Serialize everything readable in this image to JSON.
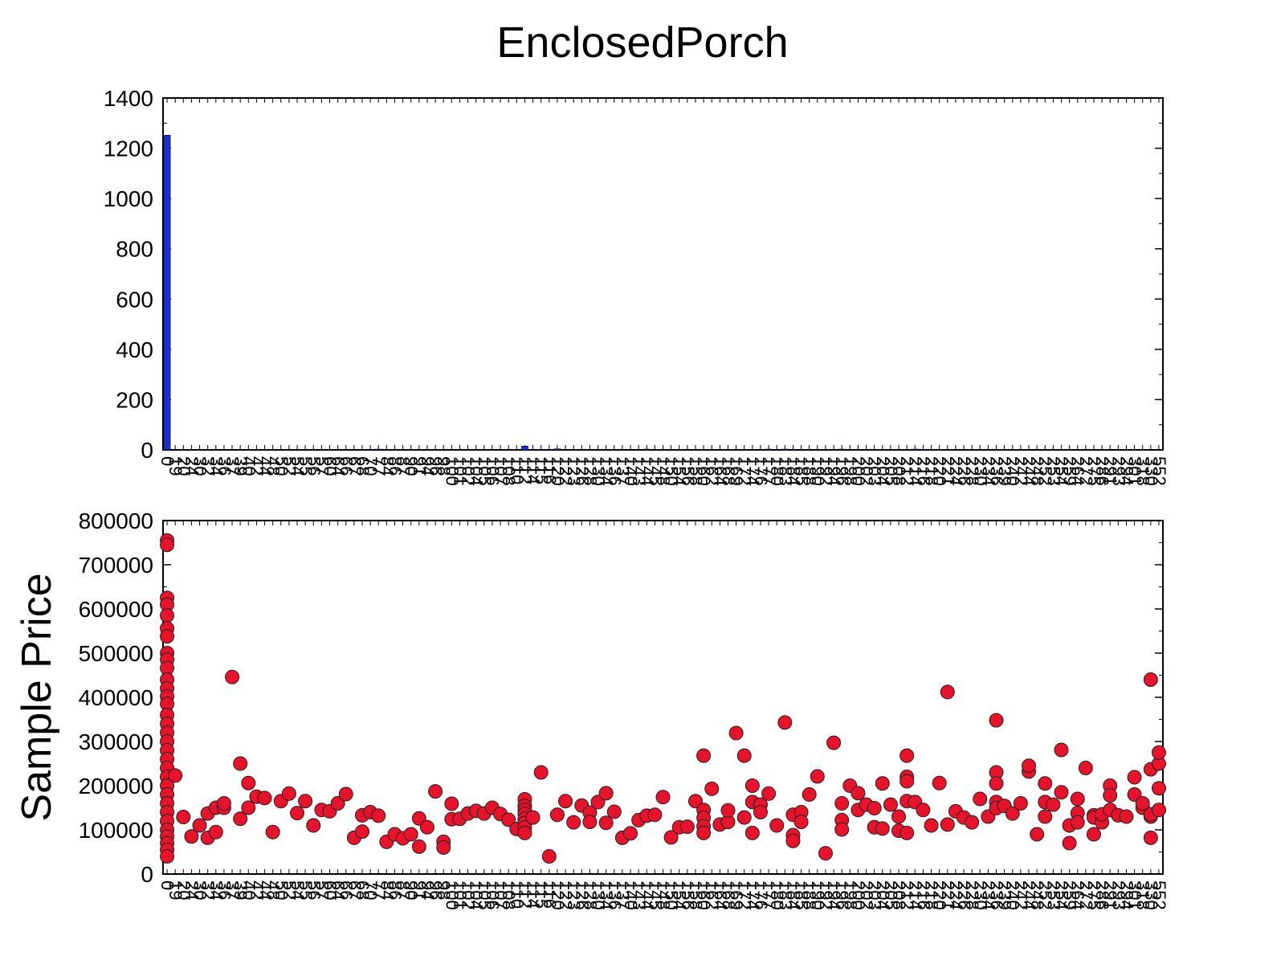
{
  "chart_data": [
    {
      "type": "bar",
      "title": "EnclosedPorch",
      "xlabel": "",
      "ylabel": "",
      "ylim": [
        0,
        1400
      ],
      "yticks": [
        0,
        200,
        400,
        600,
        800,
        1000,
        1200,
        1400
      ],
      "categories": [
        "0",
        "19",
        "20",
        "24",
        "30",
        "32",
        "34",
        "36",
        "37",
        "39",
        "40",
        "42",
        "44",
        "48",
        "50",
        "52",
        "54",
        "55",
        "56",
        "57",
        "60",
        "64",
        "66",
        "67",
        "68",
        "70",
        "77",
        "84",
        "86",
        "87",
        "90",
        "91",
        "94",
        "96",
        "98",
        "100",
        "101",
        "102",
        "104",
        "105",
        "106",
        "107",
        "108",
        "110",
        "112",
        "114",
        "115",
        "116",
        "120",
        "122",
        "123",
        "126",
        "128",
        "130",
        "134",
        "136",
        "137",
        "140",
        "143",
        "144",
        "145",
        "148",
        "150",
        "154",
        "156",
        "158",
        "160",
        "162",
        "164",
        "168",
        "169",
        "172",
        "174",
        "176",
        "177",
        "180",
        "183",
        "184",
        "185",
        "188",
        "190",
        "192",
        "194",
        "196",
        "198",
        "200",
        "202",
        "203",
        "204",
        "205",
        "208",
        "212",
        "214",
        "216",
        "218",
        "220",
        "221",
        "224",
        "226",
        "228",
        "230",
        "234",
        "236",
        "239",
        "240",
        "242",
        "244",
        "248",
        "252",
        "253",
        "254",
        "259",
        "264",
        "272",
        "275",
        "286",
        "291",
        "293",
        "294",
        "301",
        "318",
        "330",
        "552"
      ],
      "values": [
        1252,
        1,
        1,
        1,
        1,
        2,
        1,
        1,
        1,
        1,
        1,
        2,
        2,
        1,
        1,
        1,
        1,
        1,
        2,
        1,
        1,
        1,
        1,
        1,
        1,
        1,
        3,
        1,
        1,
        1,
        2,
        1,
        1,
        2,
        1,
        1,
        1,
        1,
        1,
        1,
        1,
        1,
        1,
        1,
        15,
        2,
        1,
        1,
        4,
        1,
        1,
        1,
        1,
        1,
        1,
        2,
        1,
        1,
        1,
        3,
        1,
        1,
        1,
        2,
        1,
        1,
        2,
        1,
        1,
        2,
        1,
        2,
        1,
        1,
        3,
        1,
        3,
        2,
        1,
        1,
        2,
        1,
        1,
        3,
        1,
        1,
        1,
        2,
        1,
        1,
        2,
        1,
        3,
        1,
        1,
        2,
        2,
        1,
        1,
        2,
        1,
        1,
        2,
        2,
        1,
        1,
        1,
        1,
        1,
        1,
        1,
        1,
        1,
        1,
        1,
        1,
        1,
        1,
        1,
        1,
        1,
        1,
        1
      ],
      "color": "#1a2fd6"
    },
    {
      "type": "scatter",
      "title": "",
      "xlabel": "",
      "ylabel": "Sample Price",
      "ylim": [
        0,
        800000
      ],
      "yticks": [
        0,
        100000,
        200000,
        300000,
        400000,
        500000,
        600000,
        700000,
        800000
      ],
      "color": "#e8132a",
      "points": [
        {
          "x": "0",
          "y": 755000
        },
        {
          "x": "0",
          "y": 745000
        },
        {
          "x": "0",
          "y": 625000
        },
        {
          "x": "0",
          "y": 610000
        },
        {
          "x": "0",
          "y": 585000
        },
        {
          "x": "0",
          "y": 556000
        },
        {
          "x": "0",
          "y": 538000
        },
        {
          "x": "0",
          "y": 500000
        },
        {
          "x": "0",
          "y": 485000
        },
        {
          "x": "0",
          "y": 466000
        },
        {
          "x": "0",
          "y": 440000
        },
        {
          "x": "0",
          "y": 420000
        },
        {
          "x": "0",
          "y": 402000
        },
        {
          "x": "0",
          "y": 385000
        },
        {
          "x": "0",
          "y": 360000
        },
        {
          "x": "0",
          "y": 340000
        },
        {
          "x": "0",
          "y": 320000
        },
        {
          "x": "0",
          "y": 300000
        },
        {
          "x": "0",
          "y": 280000
        },
        {
          "x": "0",
          "y": 260000
        },
        {
          "x": "0",
          "y": 240000
        },
        {
          "x": "0",
          "y": 220000
        },
        {
          "x": "0",
          "y": 200000
        },
        {
          "x": "0",
          "y": 180000
        },
        {
          "x": "0",
          "y": 160000
        },
        {
          "x": "0",
          "y": 140000
        },
        {
          "x": "0",
          "y": 120000
        },
        {
          "x": "0",
          "y": 100000
        },
        {
          "x": "0",
          "y": 85000
        },
        {
          "x": "0",
          "y": 70000
        },
        {
          "x": "0",
          "y": 55000
        },
        {
          "x": "0",
          "y": 40000
        },
        {
          "x": "19",
          "y": 223000
        },
        {
          "x": "20",
          "y": 129000
        },
        {
          "x": "24",
          "y": 85000
        },
        {
          "x": "30",
          "y": 110000
        },
        {
          "x": "32",
          "y": 82000
        },
        {
          "x": "32",
          "y": 137000
        },
        {
          "x": "34",
          "y": 150000
        },
        {
          "x": "34",
          "y": 95000
        },
        {
          "x": "36",
          "y": 150000
        },
        {
          "x": "36",
          "y": 160000
        },
        {
          "x": "37",
          "y": 446000
        },
        {
          "x": "39",
          "y": 125000
        },
        {
          "x": "39",
          "y": 250000
        },
        {
          "x": "40",
          "y": 206000
        },
        {
          "x": "40",
          "y": 150000
        },
        {
          "x": "42",
          "y": 175000
        },
        {
          "x": "44",
          "y": 172000
        },
        {
          "x": "48",
          "y": 95000
        },
        {
          "x": "50",
          "y": 165000
        },
        {
          "x": "52",
          "y": 182000
        },
        {
          "x": "54",
          "y": 138000
        },
        {
          "x": "55",
          "y": 165000
        },
        {
          "x": "56",
          "y": 110000
        },
        {
          "x": "57",
          "y": 145000
        },
        {
          "x": "60",
          "y": 142000
        },
        {
          "x": "64",
          "y": 160000
        },
        {
          "x": "66",
          "y": 181000
        },
        {
          "x": "67",
          "y": 82000
        },
        {
          "x": "68",
          "y": 96000
        },
        {
          "x": "68",
          "y": 133000
        },
        {
          "x": "70",
          "y": 140000
        },
        {
          "x": "77",
          "y": 132000
        },
        {
          "x": "84",
          "y": 73000
        },
        {
          "x": "86",
          "y": 90000
        },
        {
          "x": "87",
          "y": 81000
        },
        {
          "x": "90",
          "y": 90000
        },
        {
          "x": "91",
          "y": 62000
        },
        {
          "x": "91",
          "y": 126000
        },
        {
          "x": "94",
          "y": 106000
        },
        {
          "x": "96",
          "y": 187000
        },
        {
          "x": "98",
          "y": 73000
        },
        {
          "x": "98",
          "y": 60000
        },
        {
          "x": "100",
          "y": 159000
        },
        {
          "x": "100",
          "y": 124000
        },
        {
          "x": "101",
          "y": 125000
        },
        {
          "x": "102",
          "y": 137000
        },
        {
          "x": "104",
          "y": 143000
        },
        {
          "x": "105",
          "y": 137000
        },
        {
          "x": "106",
          "y": 150000
        },
        {
          "x": "107",
          "y": 136000
        },
        {
          "x": "108",
          "y": 123000
        },
        {
          "x": "110",
          "y": 102000
        },
        {
          "x": "112",
          "y": 169000
        },
        {
          "x": "112",
          "y": 154000
        },
        {
          "x": "112",
          "y": 145000
        },
        {
          "x": "112",
          "y": 136000
        },
        {
          "x": "112",
          "y": 125000
        },
        {
          "x": "112",
          "y": 115000
        },
        {
          "x": "112",
          "y": 105000
        },
        {
          "x": "112",
          "y": 93000
        },
        {
          "x": "114",
          "y": 128000
        },
        {
          "x": "115",
          "y": 230000
        },
        {
          "x": "116",
          "y": 40000
        },
        {
          "x": "120",
          "y": 134000
        },
        {
          "x": "122",
          "y": 165000
        },
        {
          "x": "123",
          "y": 117000
        },
        {
          "x": "126",
          "y": 155000
        },
        {
          "x": "128",
          "y": 139000
        },
        {
          "x": "128",
          "y": 118000
        },
        {
          "x": "130",
          "y": 163000
        },
        {
          "x": "134",
          "y": 183000
        },
        {
          "x": "134",
          "y": 116000
        },
        {
          "x": "136",
          "y": 141000
        },
        {
          "x": "137",
          "y": 82000
        },
        {
          "x": "140",
          "y": 92000
        },
        {
          "x": "143",
          "y": 122000
        },
        {
          "x": "144",
          "y": 132000
        },
        {
          "x": "145",
          "y": 134000
        },
        {
          "x": "148",
          "y": 174000
        },
        {
          "x": "150",
          "y": 83000
        },
        {
          "x": "154",
          "y": 106000
        },
        {
          "x": "156",
          "y": 107000
        },
        {
          "x": "158",
          "y": 165000
        },
        {
          "x": "160",
          "y": 268000
        },
        {
          "x": "160",
          "y": 145000
        },
        {
          "x": "160",
          "y": 127000
        },
        {
          "x": "160",
          "y": 108000
        },
        {
          "x": "160",
          "y": 93000
        },
        {
          "x": "162",
          "y": 193000
        },
        {
          "x": "164",
          "y": 112000
        },
        {
          "x": "168",
          "y": 118000
        },
        {
          "x": "168",
          "y": 144000
        },
        {
          "x": "169",
          "y": 319000
        },
        {
          "x": "172",
          "y": 268000
        },
        {
          "x": "172",
          "y": 128000
        },
        {
          "x": "174",
          "y": 200000
        },
        {
          "x": "174",
          "y": 163000
        },
        {
          "x": "174",
          "y": 93000
        },
        {
          "x": "176",
          "y": 157000
        },
        {
          "x": "176",
          "y": 140000
        },
        {
          "x": "177",
          "y": 182000
        },
        {
          "x": "180",
          "y": 110000
        },
        {
          "x": "183",
          "y": 343000
        },
        {
          "x": "184",
          "y": 134000
        },
        {
          "x": "184",
          "y": 88000
        },
        {
          "x": "184",
          "y": 75000
        },
        {
          "x": "185",
          "y": 140000
        },
        {
          "x": "185",
          "y": 118000
        },
        {
          "x": "188",
          "y": 180000
        },
        {
          "x": "190",
          "y": 221000
        },
        {
          "x": "192",
          "y": 47000
        },
        {
          "x": "194",
          "y": 297000
        },
        {
          "x": "196",
          "y": 160000
        },
        {
          "x": "196",
          "y": 122000
        },
        {
          "x": "196",
          "y": 101000
        },
        {
          "x": "198",
          "y": 200000
        },
        {
          "x": "200",
          "y": 183000
        },
        {
          "x": "200",
          "y": 145000
        },
        {
          "x": "202",
          "y": 157000
        },
        {
          "x": "203",
          "y": 149000
        },
        {
          "x": "203",
          "y": 106000
        },
        {
          "x": "204",
          "y": 205000
        },
        {
          "x": "204",
          "y": 103000
        },
        {
          "x": "205",
          "y": 157000
        },
        {
          "x": "208",
          "y": 130000
        },
        {
          "x": "208",
          "y": 98000
        },
        {
          "x": "212",
          "y": 268000
        },
        {
          "x": "212",
          "y": 220000
        },
        {
          "x": "212",
          "y": 210000
        },
        {
          "x": "212",
          "y": 165000
        },
        {
          "x": "212",
          "y": 93000
        },
        {
          "x": "214",
          "y": 163000
        },
        {
          "x": "216",
          "y": 145000
        },
        {
          "x": "218",
          "y": 110000
        },
        {
          "x": "220",
          "y": 206000
        },
        {
          "x": "221",
          "y": 412000
        },
        {
          "x": "221",
          "y": 112000
        },
        {
          "x": "224",
          "y": 142000
        },
        {
          "x": "226",
          "y": 128000
        },
        {
          "x": "228",
          "y": 117000
        },
        {
          "x": "230",
          "y": 170000
        },
        {
          "x": "234",
          "y": 130000
        },
        {
          "x": "236",
          "y": 348000
        },
        {
          "x": "236",
          "y": 230000
        },
        {
          "x": "236",
          "y": 205000
        },
        {
          "x": "236",
          "y": 163000
        },
        {
          "x": "236",
          "y": 149000
        },
        {
          "x": "239",
          "y": 154000
        },
        {
          "x": "240",
          "y": 137000
        },
        {
          "x": "242",
          "y": 160000
        },
        {
          "x": "244",
          "y": 232000
        },
        {
          "x": "244",
          "y": 245000
        },
        {
          "x": "248",
          "y": 90000
        },
        {
          "x": "252",
          "y": 205000
        },
        {
          "x": "252",
          "y": 163000
        },
        {
          "x": "252",
          "y": 130000
        },
        {
          "x": "253",
          "y": 157000
        },
        {
          "x": "254",
          "y": 185000
        },
        {
          "x": "254",
          "y": 281000
        },
        {
          "x": "259",
          "y": 110000
        },
        {
          "x": "259",
          "y": 70000
        },
        {
          "x": "264",
          "y": 138000
        },
        {
          "x": "264",
          "y": 170000
        },
        {
          "x": "264",
          "y": 117000
        },
        {
          "x": "272",
          "y": 240000
        },
        {
          "x": "275",
          "y": 133000
        },
        {
          "x": "275",
          "y": 90000
        },
        {
          "x": "275",
          "y": 128000
        },
        {
          "x": "286",
          "y": 117000
        },
        {
          "x": "286",
          "y": 135000
        },
        {
          "x": "291",
          "y": 200000
        },
        {
          "x": "291",
          "y": 178000
        },
        {
          "x": "291",
          "y": 145000
        },
        {
          "x": "293",
          "y": 133000
        },
        {
          "x": "294",
          "y": 130000
        },
        {
          "x": "301",
          "y": 180000
        },
        {
          "x": "301",
          "y": 219000
        },
        {
          "x": "318",
          "y": 150000
        },
        {
          "x": "318",
          "y": 160000
        },
        {
          "x": "330",
          "y": 237000
        },
        {
          "x": "330",
          "y": 82000
        },
        {
          "x": "330",
          "y": 440000
        },
        {
          "x": "330",
          "y": 130000
        },
        {
          "x": "330",
          "y": 135000
        },
        {
          "x": "552",
          "y": 194000
        },
        {
          "x": "552",
          "y": 250000
        },
        {
          "x": "552",
          "y": 145000
        },
        {
          "x": "552",
          "y": 275000
        }
      ]
    }
  ]
}
